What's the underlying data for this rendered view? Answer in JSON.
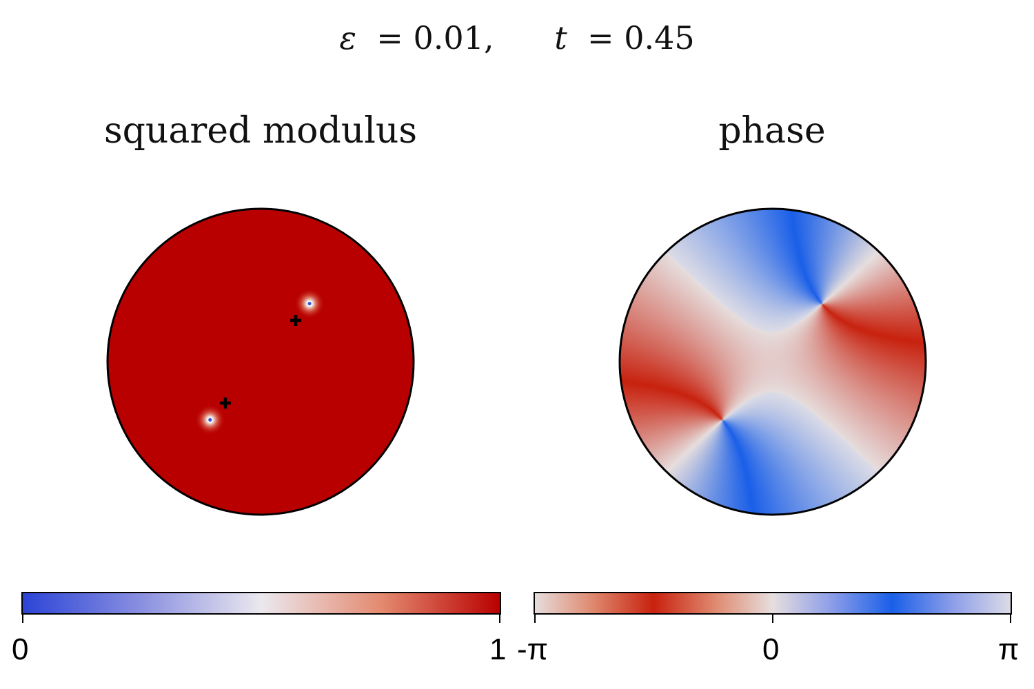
{
  "title": {
    "eps_symbol": "ε",
    "eps_value": "0.01,",
    "t_symbol": "t",
    "t_value": "0.45"
  },
  "chart_data": [
    {
      "type": "heatmap",
      "title": "squared modulus",
      "domain": "unit disk",
      "colormap": {
        "ticks": [
          "0",
          "1"
        ],
        "range": [
          0,
          1
        ],
        "stops": [
          "#2b44d6",
          "#e9e7ee",
          "#b80000"
        ]
      },
      "background_value": 1,
      "vortex_cores": [
        {
          "x": 0.32,
          "y": 0.38,
          "value": 0
        },
        {
          "x": -0.33,
          "y": -0.38,
          "value": 0
        }
      ],
      "markers": [
        {
          "symbol": "+",
          "x": 0.23,
          "y": 0.27
        },
        {
          "symbol": "+",
          "x": -0.23,
          "y": -0.27
        }
      ]
    },
    {
      "type": "heatmap",
      "title": "phase",
      "domain": "unit disk",
      "colormap": {
        "ticks": [
          "-π",
          "0",
          "π"
        ],
        "range": [
          -3.14159,
          3.14159
        ],
        "stops": [
          "#e6dede",
          "#c8220f",
          "#e6dede",
          "#1a5fe8",
          "#dcdce6"
        ]
      },
      "vortices": [
        {
          "x": 0.32,
          "y": 0.38,
          "winding": 1
        },
        {
          "x": -0.33,
          "y": -0.38,
          "winding": 1
        }
      ]
    }
  ]
}
